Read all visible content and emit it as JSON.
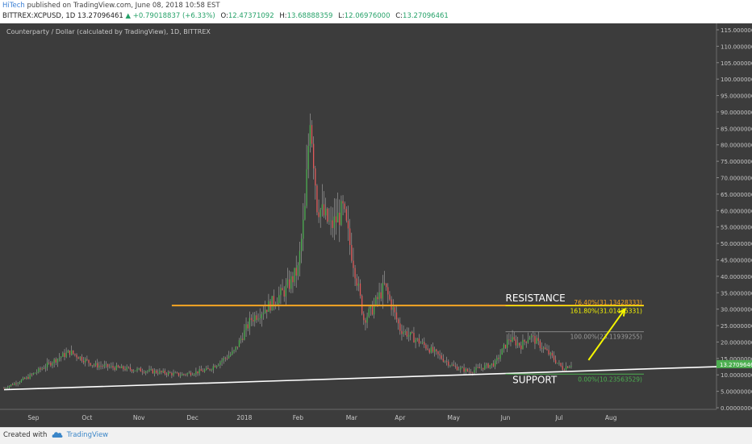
{
  "header": {
    "author": "HiTech",
    "published": "published on TradingView.com, June 08, 2018 10:58 EST",
    "symbol_line": "BITTREX:XCPUSD, 1D  13.27096461",
    "change": "+0.79018837 (+6.33%)",
    "o_label": "O:",
    "o_value": "12.47371092",
    "h_label": "H:",
    "h_value": "13.68888359",
    "l_label": "L:",
    "l_value": "12.06976000",
    "c_label": "C:",
    "c_value": "13.27096461"
  },
  "footer": {
    "created": "Created with",
    "brand": "TradingView"
  },
  "colors": {
    "background": "#3c3c3c",
    "up": "#4caf50",
    "down": "#e05b5b",
    "resistance": "#f5a623",
    "support": "#ffffff",
    "arrow": "#f5f500",
    "fib_target": "#f5f500",
    "fib_zero": "#4caf50",
    "fib_hundred": "#9e9e9e"
  },
  "chart_data": {
    "type": "candlestick",
    "title": "Counterparty / Dollar (calculated by TradingView), 1D, BITTREX",
    "ylim": [
      0,
      115
    ],
    "y_ticks": [
      0,
      5,
      10,
      15,
      20,
      25,
      30,
      35,
      40,
      45,
      50,
      55,
      60,
      65,
      70,
      75,
      80,
      85,
      90,
      95,
      100,
      105,
      110,
      115
    ],
    "x_ticks": [
      "Aug",
      "Sep",
      "Oct",
      "Nov",
      "Dec",
      "2018",
      "Feb",
      "Mar",
      "Apr",
      "May",
      "Jun",
      "Jul",
      "Aug"
    ],
    "x_range": [
      "2017-07-15",
      "2018-08-31"
    ],
    "last_price": 13.27096461,
    "last_price_label": "13.27096461",
    "price_anchors": [
      [
        "2017-07-15",
        6.0
      ],
      [
        "2017-07-28",
        9.0
      ],
      [
        "2017-08-15",
        15.0
      ],
      [
        "2017-08-22",
        17.0
      ],
      [
        "2017-09-05",
        13.0
      ],
      [
        "2017-09-20",
        12.0
      ],
      [
        "2017-10-10",
        11.0
      ],
      [
        "2017-10-25",
        10.0
      ],
      [
        "2017-11-10",
        11.5
      ],
      [
        "2017-11-25",
        17.0
      ],
      [
        "2017-12-05",
        27.0
      ],
      [
        "2017-12-15",
        31.0
      ],
      [
        "2017-12-25",
        36.0
      ],
      [
        "2018-01-01",
        42.0
      ],
      [
        "2018-01-05",
        60.0
      ],
      [
        "2018-01-08",
        90.0
      ],
      [
        "2018-01-12",
        62.0
      ],
      [
        "2018-01-20",
        55.0
      ],
      [
        "2018-01-27",
        60.0
      ],
      [
        "2018-02-03",
        42.0
      ],
      [
        "2018-02-08",
        27.0
      ],
      [
        "2018-02-13",
        30.0
      ],
      [
        "2018-02-20",
        37.0
      ],
      [
        "2018-03-01",
        24.0
      ],
      [
        "2018-03-15",
        19.0
      ],
      [
        "2018-04-01",
        12.5
      ],
      [
        "2018-04-10",
        11.0
      ],
      [
        "2018-04-25",
        13.5
      ],
      [
        "2018-05-03",
        21.0
      ],
      [
        "2018-05-10",
        19.0
      ],
      [
        "2018-05-15",
        22.0
      ],
      [
        "2018-05-25",
        17.0
      ],
      [
        "2018-06-03",
        12.0
      ],
      [
        "2018-06-08",
        13.27
      ]
    ],
    "annotations": {
      "resistance": {
        "text": "RESISTANCE",
        "value": 31.1,
        "from": "2017-10-20",
        "to": "2018-07-20"
      },
      "support": {
        "text": "SUPPORT",
        "from": [
          "2017-07-15",
          5.5
        ],
        "to": [
          "2018-08-31",
          12.5
        ]
      },
      "fib_levels": [
        {
          "label": "76.40%(31.13428333)",
          "value": 31.13428333
        },
        {
          "label": "161.80%(31.01425331)",
          "value": 31.01425331
        },
        {
          "label": "100.00%(23.11939255)",
          "value": 23.11939255
        },
        {
          "label": "0.00%(10.23563529)",
          "value": 10.23563529
        }
      ],
      "fib_range": [
        "2018-05-01",
        "2018-07-20"
      ],
      "arrow": {
        "from": [
          "2018-06-18",
          14.5
        ],
        "to": [
          "2018-07-09",
          30.0
        ]
      }
    }
  }
}
